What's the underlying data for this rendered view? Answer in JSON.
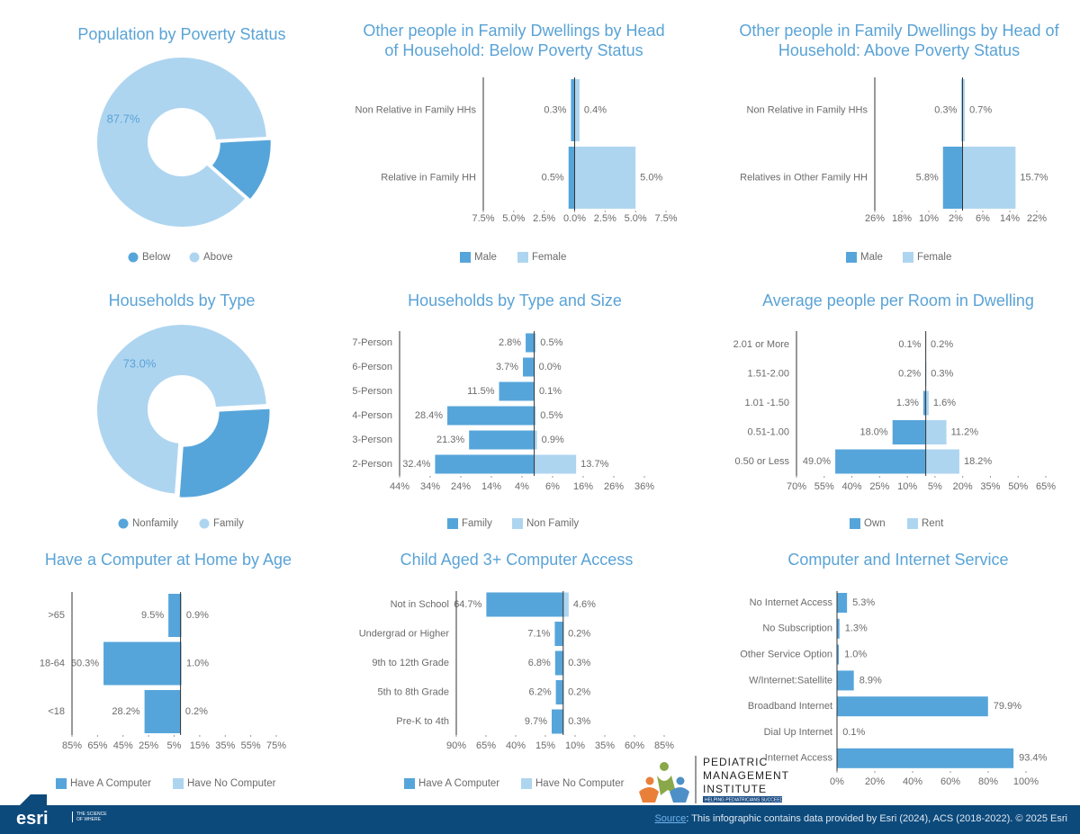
{
  "chart_data": [
    {
      "type": "donut",
      "title": [
        "Population by Poverty Status"
      ],
      "categories": [
        "Below",
        "Above"
      ],
      "values": [
        12.3,
        87.7
      ],
      "value_labels": [
        null,
        "87.7%"
      ],
      "colors": [
        "#56a5da",
        "#aed5f0"
      ]
    },
    {
      "type": "butterfly",
      "title": [
        "Other people in Family Dwellings by Head",
        "of Household: Below Poverty Status"
      ],
      "categories": [
        "Non Relative in Family HHs",
        "Relative in Family HH"
      ],
      "series": [
        {
          "name": "Male",
          "color": "#56a5da",
          "values": [
            0.3,
            0.5
          ],
          "value_labels": [
            "0.3%",
            "0.5%"
          ]
        },
        {
          "name": "Female",
          "color": "#aed5f0",
          "values": [
            0.4,
            5.0
          ],
          "value_labels": [
            "0.4%",
            "5.0%"
          ]
        }
      ],
      "xlim": [
        -7.5,
        7.5
      ],
      "xticks": [
        {
          "value": -7.5,
          "label": "7.5%"
        },
        {
          "value": -5,
          "label": "5.0%"
        },
        {
          "value": -2.5,
          "label": "2.5%"
        },
        {
          "value": 0,
          "label": "0.0%"
        },
        {
          "value": 2.5,
          "label": "2.5%"
        },
        {
          "value": 5,
          "label": "5.0%"
        },
        {
          "value": 7.5,
          "label": "7.5%"
        }
      ]
    },
    {
      "type": "butterfly",
      "title": [
        "Other people in Family Dwellings by Head of",
        "Household: Above Poverty Status"
      ],
      "categories": [
        "Non Relative in Family HHs",
        "Relatives in Other Family HH"
      ],
      "series": [
        {
          "name": "Male",
          "color": "#56a5da",
          "values": [
            0.3,
            5.8
          ],
          "value_labels": [
            "0.3%",
            "5.8%"
          ]
        },
        {
          "name": "Female",
          "color": "#aed5f0",
          "values": [
            0.7,
            15.7
          ],
          "value_labels": [
            "0.7%",
            "15.7%"
          ]
        }
      ],
      "xlim": [
        -26,
        22
      ],
      "xticks": [
        {
          "value": -26,
          "label": "26%"
        },
        {
          "value": -18,
          "label": "18%"
        },
        {
          "value": -10,
          "label": "10%"
        },
        {
          "value": -2,
          "label": "2%"
        },
        {
          "value": 6,
          "label": "6%"
        },
        {
          "value": 14,
          "label": "14%"
        },
        {
          "value": 22,
          "label": "22%"
        }
      ]
    },
    {
      "type": "donut",
      "title": [
        "Households by Type"
      ],
      "categories": [
        "Nonfamily",
        "Family"
      ],
      "values": [
        27.0,
        73.0
      ],
      "value_labels": [
        null,
        "73.0%"
      ],
      "colors": [
        "#56a5da",
        "#aed5f0"
      ]
    },
    {
      "type": "butterfly",
      "title": [
        "Households by Type and Size"
      ],
      "categories": [
        "7-Person",
        "6-Person",
        "5-Person",
        "4-Person",
        "3-Person",
        "2-Person"
      ],
      "series": [
        {
          "name": "Family",
          "color": "#56a5da",
          "values": [
            2.8,
            3.7,
            11.5,
            28.4,
            21.3,
            32.4
          ],
          "value_labels": [
            "2.8%",
            "3.7%",
            "11.5%",
            "28.4%",
            "21.3%",
            "32.4%"
          ]
        },
        {
          "name": "Non Family",
          "color": "#aed5f0",
          "values": [
            0.5,
            0.0,
            0.1,
            0.5,
            0.9,
            13.7
          ],
          "value_labels": [
            "0.5%",
            "0.0%",
            "0.1%",
            "0.5%",
            "0.9%",
            "13.7%"
          ]
        }
      ],
      "xlim": [
        -44,
        36
      ],
      "xticks": [
        {
          "value": -44,
          "label": "44%"
        },
        {
          "value": -34,
          "label": "34%"
        },
        {
          "value": -24,
          "label": "24%"
        },
        {
          "value": -14,
          "label": "14%"
        },
        {
          "value": -4,
          "label": "4%"
        },
        {
          "value": 6,
          "label": "6%"
        },
        {
          "value": 16,
          "label": "16%"
        },
        {
          "value": 26,
          "label": "26%"
        },
        {
          "value": 36,
          "label": "36%"
        }
      ]
    },
    {
      "type": "butterfly",
      "title": [
        "Average people per Room in Dwelling"
      ],
      "categories": [
        "2.01 or More",
        "1.51-2.00",
        "1.01 -1.50",
        "0.51-1.00",
        "0.50 or Less"
      ],
      "series": [
        {
          "name": "Own",
          "color": "#56a5da",
          "values": [
            0.1,
            0.2,
            1.3,
            18.0,
            49.0
          ],
          "value_labels": [
            "0.1%",
            "0.2%",
            "1.3%",
            "18.0%",
            "49.0%"
          ]
        },
        {
          "name": "Rent",
          "color": "#aed5f0",
          "values": [
            0.2,
            0.3,
            1.6,
            11.2,
            18.2
          ],
          "value_labels": [
            "0.2%",
            "0.3%",
            "1.6%",
            "11.2%",
            "18.2%"
          ]
        }
      ],
      "xlim": [
        -70,
        65
      ],
      "xticks": [
        {
          "value": -70,
          "label": "70%"
        },
        {
          "value": -55,
          "label": "55%"
        },
        {
          "value": -40,
          "label": "40%"
        },
        {
          "value": -25,
          "label": "25%"
        },
        {
          "value": -10,
          "label": "10%"
        },
        {
          "value": 5,
          "label": "5%"
        },
        {
          "value": 20,
          "label": "20%"
        },
        {
          "value": 35,
          "label": "35%"
        },
        {
          "value": 50,
          "label": "50%"
        },
        {
          "value": 65,
          "label": "65%"
        }
      ]
    },
    {
      "type": "butterfly",
      "title": [
        "Have a Computer at Home by Age"
      ],
      "categories": [
        ">65",
        "18-64",
        "<18"
      ],
      "series": [
        {
          "name": "Have A Computer",
          "color": "#56a5da",
          "values": [
            9.5,
            60.3,
            28.2
          ],
          "value_labels": [
            "9.5%",
            "60.3%",
            "28.2%"
          ]
        },
        {
          "name": "Have No Computer",
          "color": "#aed5f0",
          "values": [
            0.9,
            1.0,
            0.2
          ],
          "value_labels": [
            "0.9%",
            "1.0%",
            "0.2%"
          ]
        }
      ],
      "xlim": [
        -85,
        75
      ],
      "xticks": [
        {
          "value": -85,
          "label": "85%"
        },
        {
          "value": -65,
          "label": "65%"
        },
        {
          "value": -45,
          "label": "45%"
        },
        {
          "value": -25,
          "label": "25%"
        },
        {
          "value": -5,
          "label": "5%"
        },
        {
          "value": 15,
          "label": "15%"
        },
        {
          "value": 35,
          "label": "35%"
        },
        {
          "value": 55,
          "label": "55%"
        },
        {
          "value": 75,
          "label": "75%"
        }
      ]
    },
    {
      "type": "butterfly",
      "title": [
        "Child Aged 3+ Computer Access"
      ],
      "categories": [
        "Not in School",
        "Undergrad or Higher",
        "9th to 12th Grade",
        "5th to 8th Grade",
        "Pre-K to 4th"
      ],
      "series": [
        {
          "name": "Have A Computer",
          "color": "#56a5da",
          "values": [
            64.7,
            7.1,
            6.8,
            6.2,
            9.7
          ],
          "value_labels": [
            "64.7%",
            "7.1%",
            "6.8%",
            "6.2%",
            "9.7%"
          ]
        },
        {
          "name": "Have No Computer",
          "color": "#aed5f0",
          "values": [
            4.6,
            0.2,
            0.3,
            0.2,
            0.3
          ],
          "value_labels": [
            "4.6%",
            "0.2%",
            "0.3%",
            "0.2%",
            "0.3%"
          ]
        }
      ],
      "xlim": [
        -90,
        85
      ],
      "xticks": [
        {
          "value": -90,
          "label": "90%"
        },
        {
          "value": -65,
          "label": "65%"
        },
        {
          "value": -40,
          "label": "40%"
        },
        {
          "value": -15,
          "label": "15%"
        },
        {
          "value": 10,
          "label": "10%"
        },
        {
          "value": 35,
          "label": "35%"
        },
        {
          "value": 60,
          "label": "60%"
        },
        {
          "value": 85,
          "label": "85%"
        }
      ]
    },
    {
      "type": "barh",
      "title": [
        "Computer and Internet Service"
      ],
      "categories": [
        "No Internet Access",
        "No Subscription",
        "Other Service Option",
        "W/Internet:Satellite",
        "Broadband Internet",
        "Dial Up Internet",
        "Internet Access"
      ],
      "values": [
        5.3,
        1.3,
        1.0,
        8.9,
        79.9,
        0.1,
        93.4
      ],
      "value_labels": [
        "5.3%",
        "1.3%",
        "1.0%",
        "8.9%",
        "79.9%",
        "0.1%",
        "93.4%"
      ],
      "color": "#56a5da",
      "xlim": [
        0,
        100
      ],
      "xticks": [
        {
          "value": 0,
          "label": "0%"
        },
        {
          "value": 20,
          "label": "20%"
        },
        {
          "value": 40,
          "label": "40%"
        },
        {
          "value": 60,
          "label": "60%"
        },
        {
          "value": 80,
          "label": "80%"
        },
        {
          "value": 100,
          "label": "100%"
        }
      ]
    }
  ],
  "logo": {
    "lines": [
      "PEDIATRIC",
      "MANAGEMENT",
      "INSTITUTE"
    ],
    "tagline": "HELPING PEDIATRICIANS SUCCEED"
  },
  "footer": {
    "brand": "esri",
    "brand_tagline": "THE SCIENCE OF WHERE",
    "source_link": "Source",
    "source_text": ": This infographic contains data provided by Esri (2024), ACS (2018-2022). © 2025 Esri"
  }
}
